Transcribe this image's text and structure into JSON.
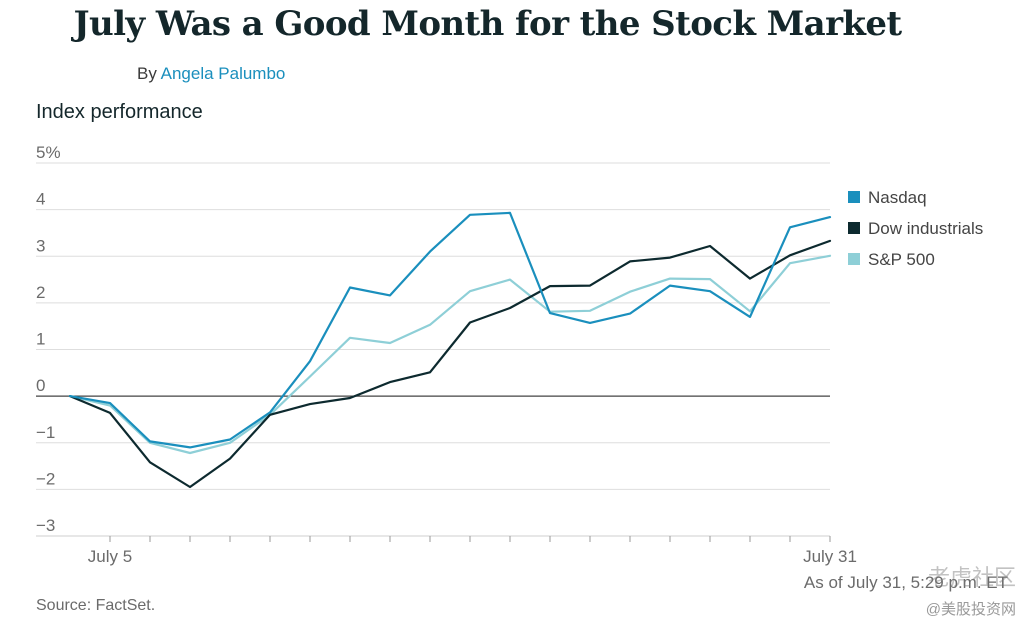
{
  "header": {
    "title": "July Was a Good Month for the Stock Market",
    "byline_prefix": "By ",
    "author": "Angela Palumbo"
  },
  "chart_data": {
    "type": "line",
    "title": "Index performance",
    "y_ticks": [
      "5%",
      "4",
      "3",
      "2",
      "1",
      "0",
      "−1",
      "−2",
      "−3"
    ],
    "y_tick_values": [
      5,
      4,
      3,
      2,
      1,
      0,
      -1,
      -2,
      -3
    ],
    "ylim": [
      -3,
      5
    ],
    "x_tick_labels": [
      {
        "index": 1,
        "label": "July 5"
      },
      {
        "index": 19,
        "label": "July 31"
      }
    ],
    "num_points": 20,
    "grid": true,
    "legend_position": "right",
    "series": [
      {
        "name": "Nasdaq",
        "color": "#1a8fbd",
        "values": [
          0,
          -0.15,
          -0.97,
          -1.1,
          -0.93,
          -0.35,
          0.75,
          2.33,
          2.16,
          3.1,
          3.89,
          3.93,
          1.78,
          1.57,
          1.77,
          2.37,
          2.25,
          1.7,
          3.62,
          3.84
        ]
      },
      {
        "name": "Dow industrials",
        "color": "#0d2a2f",
        "values": [
          0,
          -0.36,
          -1.42,
          -1.95,
          -1.34,
          -0.4,
          -0.17,
          -0.04,
          0.3,
          0.51,
          1.58,
          1.89,
          2.36,
          2.37,
          2.89,
          2.97,
          3.22,
          2.52,
          3.02,
          3.33
        ]
      },
      {
        "name": "S&P 500",
        "color": "#8ecfd7",
        "values": [
          0,
          -0.2,
          -1.0,
          -1.22,
          -1.0,
          -0.4,
          0.42,
          1.25,
          1.14,
          1.53,
          2.25,
          2.5,
          1.81,
          1.83,
          2.24,
          2.52,
          2.51,
          1.82,
          2.85,
          3.01
        ]
      }
    ]
  },
  "footer": {
    "note": "As of July 31, 5:29 p.m. ET",
    "source": "Source: FactSet."
  },
  "watermark": {
    "line1": "老虎社区",
    "line2": "@美股投资网"
  }
}
